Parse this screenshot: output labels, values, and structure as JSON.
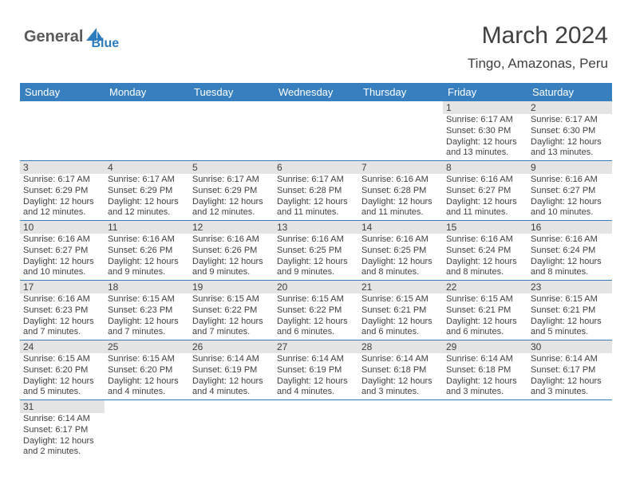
{
  "logo": {
    "part1": "General",
    "part2": "Blue",
    "color1": "#5a5a5a",
    "color2": "#2b7bbf"
  },
  "title": "March 2024",
  "location": "Tingo, Amazonas, Peru",
  "header_bg": "#377fbf",
  "header_fg": "#ffffff",
  "daynum_bg": "#e4e4e4",
  "border_color": "#3a7db8",
  "text_color": "#404040",
  "weekdays": [
    "Sunday",
    "Monday",
    "Tuesday",
    "Wednesday",
    "Thursday",
    "Friday",
    "Saturday"
  ],
  "weeks": [
    [
      {
        "num": "",
        "lines": []
      },
      {
        "num": "",
        "lines": []
      },
      {
        "num": "",
        "lines": []
      },
      {
        "num": "",
        "lines": []
      },
      {
        "num": "",
        "lines": []
      },
      {
        "num": "1",
        "lines": [
          "Sunrise: 6:17 AM",
          "Sunset: 6:30 PM",
          "Daylight: 12 hours",
          "and 13 minutes."
        ]
      },
      {
        "num": "2",
        "lines": [
          "Sunrise: 6:17 AM",
          "Sunset: 6:30 PM",
          "Daylight: 12 hours",
          "and 13 minutes."
        ]
      }
    ],
    [
      {
        "num": "3",
        "lines": [
          "Sunrise: 6:17 AM",
          "Sunset: 6:29 PM",
          "Daylight: 12 hours",
          "and 12 minutes."
        ]
      },
      {
        "num": "4",
        "lines": [
          "Sunrise: 6:17 AM",
          "Sunset: 6:29 PM",
          "Daylight: 12 hours",
          "and 12 minutes."
        ]
      },
      {
        "num": "5",
        "lines": [
          "Sunrise: 6:17 AM",
          "Sunset: 6:29 PM",
          "Daylight: 12 hours",
          "and 12 minutes."
        ]
      },
      {
        "num": "6",
        "lines": [
          "Sunrise: 6:17 AM",
          "Sunset: 6:28 PM",
          "Daylight: 12 hours",
          "and 11 minutes."
        ]
      },
      {
        "num": "7",
        "lines": [
          "Sunrise: 6:16 AM",
          "Sunset: 6:28 PM",
          "Daylight: 12 hours",
          "and 11 minutes."
        ]
      },
      {
        "num": "8",
        "lines": [
          "Sunrise: 6:16 AM",
          "Sunset: 6:27 PM",
          "Daylight: 12 hours",
          "and 11 minutes."
        ]
      },
      {
        "num": "9",
        "lines": [
          "Sunrise: 6:16 AM",
          "Sunset: 6:27 PM",
          "Daylight: 12 hours",
          "and 10 minutes."
        ]
      }
    ],
    [
      {
        "num": "10",
        "lines": [
          "Sunrise: 6:16 AM",
          "Sunset: 6:27 PM",
          "Daylight: 12 hours",
          "and 10 minutes."
        ]
      },
      {
        "num": "11",
        "lines": [
          "Sunrise: 6:16 AM",
          "Sunset: 6:26 PM",
          "Daylight: 12 hours",
          "and 9 minutes."
        ]
      },
      {
        "num": "12",
        "lines": [
          "Sunrise: 6:16 AM",
          "Sunset: 6:26 PM",
          "Daylight: 12 hours",
          "and 9 minutes."
        ]
      },
      {
        "num": "13",
        "lines": [
          "Sunrise: 6:16 AM",
          "Sunset: 6:25 PM",
          "Daylight: 12 hours",
          "and 9 minutes."
        ]
      },
      {
        "num": "14",
        "lines": [
          "Sunrise: 6:16 AM",
          "Sunset: 6:25 PM",
          "Daylight: 12 hours",
          "and 8 minutes."
        ]
      },
      {
        "num": "15",
        "lines": [
          "Sunrise: 6:16 AM",
          "Sunset: 6:24 PM",
          "Daylight: 12 hours",
          "and 8 minutes."
        ]
      },
      {
        "num": "16",
        "lines": [
          "Sunrise: 6:16 AM",
          "Sunset: 6:24 PM",
          "Daylight: 12 hours",
          "and 8 minutes."
        ]
      }
    ],
    [
      {
        "num": "17",
        "lines": [
          "Sunrise: 6:16 AM",
          "Sunset: 6:23 PM",
          "Daylight: 12 hours",
          "and 7 minutes."
        ]
      },
      {
        "num": "18",
        "lines": [
          "Sunrise: 6:15 AM",
          "Sunset: 6:23 PM",
          "Daylight: 12 hours",
          "and 7 minutes."
        ]
      },
      {
        "num": "19",
        "lines": [
          "Sunrise: 6:15 AM",
          "Sunset: 6:22 PM",
          "Daylight: 12 hours",
          "and 7 minutes."
        ]
      },
      {
        "num": "20",
        "lines": [
          "Sunrise: 6:15 AM",
          "Sunset: 6:22 PM",
          "Daylight: 12 hours",
          "and 6 minutes."
        ]
      },
      {
        "num": "21",
        "lines": [
          "Sunrise: 6:15 AM",
          "Sunset: 6:21 PM",
          "Daylight: 12 hours",
          "and 6 minutes."
        ]
      },
      {
        "num": "22",
        "lines": [
          "Sunrise: 6:15 AM",
          "Sunset: 6:21 PM",
          "Daylight: 12 hours",
          "and 6 minutes."
        ]
      },
      {
        "num": "23",
        "lines": [
          "Sunrise: 6:15 AM",
          "Sunset: 6:21 PM",
          "Daylight: 12 hours",
          "and 5 minutes."
        ]
      }
    ],
    [
      {
        "num": "24",
        "lines": [
          "Sunrise: 6:15 AM",
          "Sunset: 6:20 PM",
          "Daylight: 12 hours",
          "and 5 minutes."
        ]
      },
      {
        "num": "25",
        "lines": [
          "Sunrise: 6:15 AM",
          "Sunset: 6:20 PM",
          "Daylight: 12 hours",
          "and 4 minutes."
        ]
      },
      {
        "num": "26",
        "lines": [
          "Sunrise: 6:14 AM",
          "Sunset: 6:19 PM",
          "Daylight: 12 hours",
          "and 4 minutes."
        ]
      },
      {
        "num": "27",
        "lines": [
          "Sunrise: 6:14 AM",
          "Sunset: 6:19 PM",
          "Daylight: 12 hours",
          "and 4 minutes."
        ]
      },
      {
        "num": "28",
        "lines": [
          "Sunrise: 6:14 AM",
          "Sunset: 6:18 PM",
          "Daylight: 12 hours",
          "and 3 minutes."
        ]
      },
      {
        "num": "29",
        "lines": [
          "Sunrise: 6:14 AM",
          "Sunset: 6:18 PM",
          "Daylight: 12 hours",
          "and 3 minutes."
        ]
      },
      {
        "num": "30",
        "lines": [
          "Sunrise: 6:14 AM",
          "Sunset: 6:17 PM",
          "Daylight: 12 hours",
          "and 3 minutes."
        ]
      }
    ],
    [
      {
        "num": "31",
        "lines": [
          "Sunrise: 6:14 AM",
          "Sunset: 6:17 PM",
          "Daylight: 12 hours",
          "and 2 minutes."
        ]
      },
      {
        "num": "",
        "lines": []
      },
      {
        "num": "",
        "lines": []
      },
      {
        "num": "",
        "lines": []
      },
      {
        "num": "",
        "lines": []
      },
      {
        "num": "",
        "lines": []
      },
      {
        "num": "",
        "lines": []
      }
    ]
  ]
}
